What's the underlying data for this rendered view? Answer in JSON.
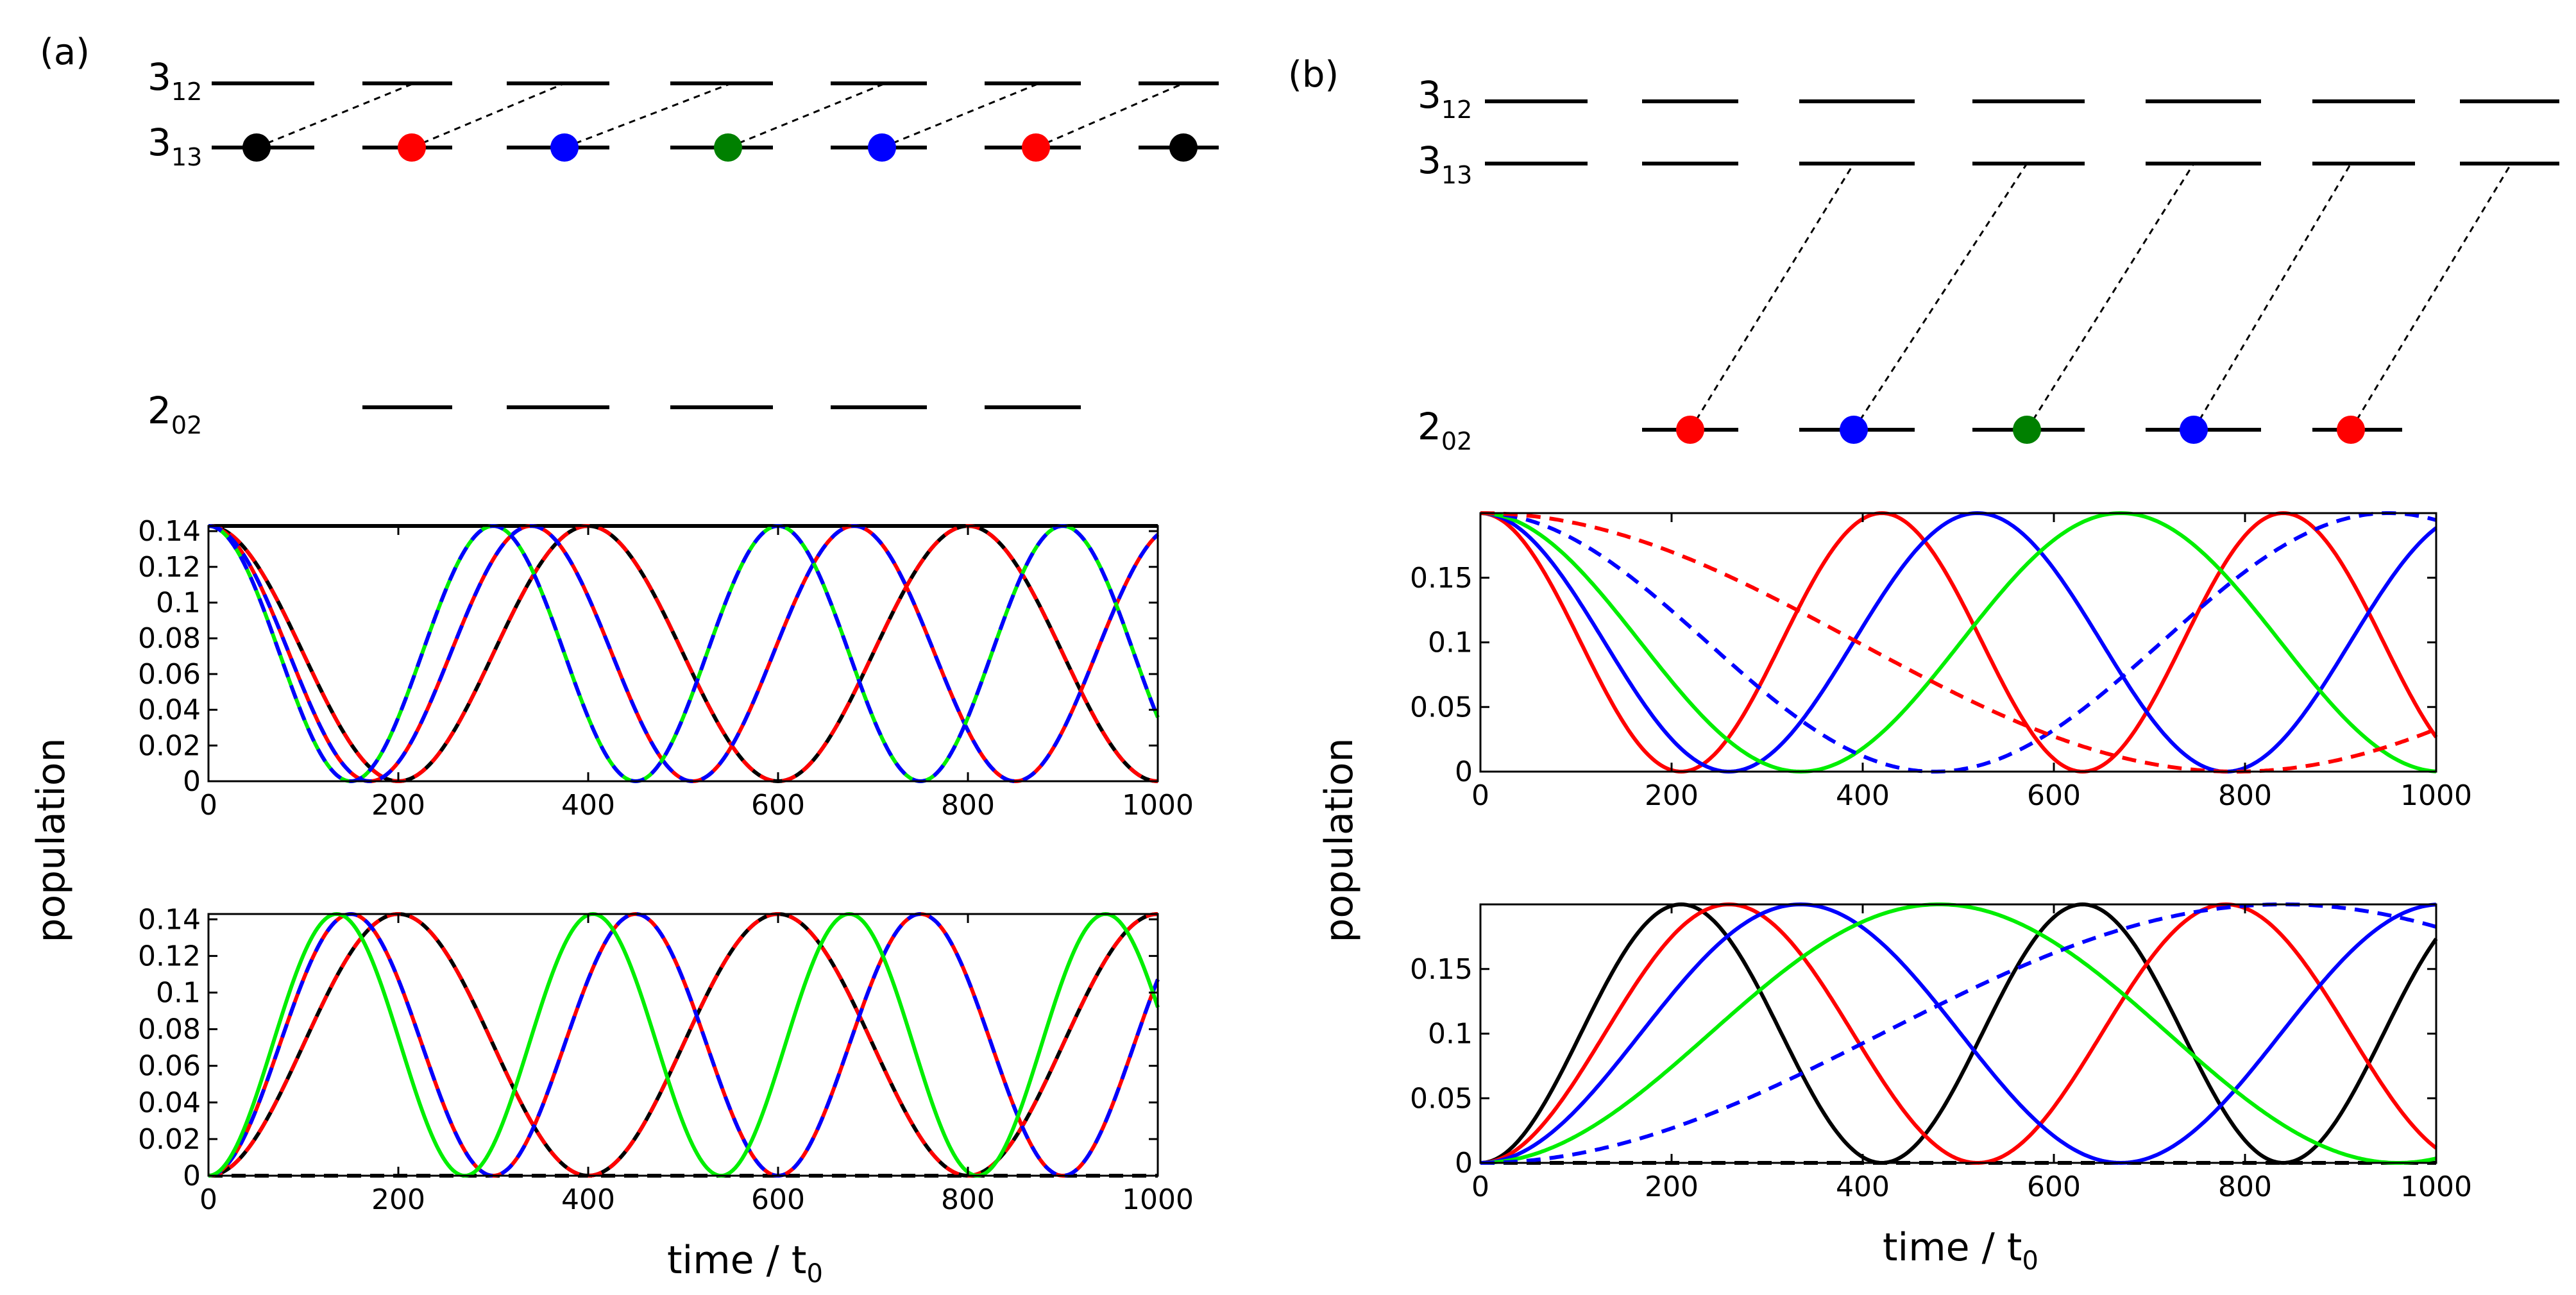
{
  "panel_a": {
    "label": "(a)",
    "levels": {
      "upper": "3",
      "upper_sub": "12",
      "mid": "3",
      "mid_sub": "13",
      "low": "2",
      "low_sub": "02"
    },
    "dot_colors": [
      "#000000",
      "#ff0000",
      "#0000ff",
      "#008000",
      "#0000ff",
      "#ff0000",
      "#000000"
    ]
  },
  "panel_b": {
    "label": "(b)",
    "levels": {
      "upper": "3",
      "upper_sub": "12",
      "mid": "3",
      "mid_sub": "13",
      "low": "2",
      "low_sub": "02"
    },
    "dot_colors": [
      "#ff0000",
      "#0000ff",
      "#008000",
      "#0000ff",
      "#ff0000"
    ]
  },
  "labels": {
    "ylabel": "population",
    "xlabel_a": "time / t",
    "xlabel_a_sub": "0",
    "xlabel_b": "time / t",
    "xlabel_b_sub": "0"
  },
  "chart_data": [
    {
      "id": "a_top",
      "type": "line",
      "xlabel": "time / t0",
      "ylabel": "population",
      "xlim": [
        0,
        1000
      ],
      "ylim": [
        0,
        0.1429
      ],
      "xticks": [
        0,
        200,
        400,
        600,
        800,
        1000
      ],
      "xticklabels": [
        "0",
        "200",
        "400",
        "600",
        "800",
        "1000"
      ],
      "yticks": [
        0,
        0.02,
        0.04,
        0.06,
        0.08,
        0.1,
        0.12,
        0.14
      ],
      "yticklabels": [
        "0",
        "0.02",
        "0.04",
        "0.06",
        "0.08",
        "0.1",
        "0.12",
        "0.14"
      ],
      "series": [
        {
          "name": "black const",
          "color": "#000000",
          "dash": false,
          "form": "const",
          "amp": 0.1429
        },
        {
          "name": "black",
          "color": "#000000",
          "dash": false,
          "form": "cos",
          "amp": 0.1429,
          "period": 400
        },
        {
          "name": "red dashed",
          "color": "#ff0000",
          "dash": true,
          "form": "cos",
          "amp": 0.1429,
          "period": 400
        },
        {
          "name": "red",
          "color": "#ff0000",
          "dash": false,
          "form": "cos",
          "amp": 0.1429,
          "period": 340
        },
        {
          "name": "blue dashed",
          "color": "#0000ff",
          "dash": true,
          "form": "cos",
          "amp": 0.1429,
          "period": 340
        },
        {
          "name": "green",
          "color": "#00ee00",
          "dash": false,
          "form": "cos",
          "amp": 0.1429,
          "period": 300
        },
        {
          "name": "blue dashed",
          "color": "#0000ff",
          "dash": true,
          "form": "cos",
          "amp": 0.1429,
          "period": 300
        }
      ]
    },
    {
      "id": "a_bottom",
      "type": "line",
      "xlabel": "time / t0",
      "ylabel": "population",
      "xlim": [
        0,
        1000
      ],
      "ylim": [
        0,
        0.1429
      ],
      "xticks": [
        0,
        200,
        400,
        600,
        800,
        1000
      ],
      "xticklabels": [
        "0",
        "200",
        "400",
        "600",
        "800",
        "1000"
      ],
      "yticks": [
        0,
        0.02,
        0.04,
        0.06,
        0.08,
        0.1,
        0.12,
        0.14
      ],
      "yticklabels": [
        "0",
        "0.02",
        "0.04",
        "0.06",
        "0.08",
        "0.1",
        "0.12",
        "0.14"
      ],
      "series": [
        {
          "name": "black dashed zero",
          "color": "#000000",
          "dash": true,
          "form": "const",
          "amp": 0.0
        },
        {
          "name": "black",
          "color": "#000000",
          "dash": false,
          "form": "sin",
          "amp": 0.1429,
          "period": 400
        },
        {
          "name": "red dashed",
          "color": "#ff0000",
          "dash": true,
          "form": "sin",
          "amp": 0.1429,
          "period": 400
        },
        {
          "name": "red",
          "color": "#ff0000",
          "dash": false,
          "form": "sin",
          "amp": 0.1429,
          "period": 300
        },
        {
          "name": "blue dashed",
          "color": "#0000ff",
          "dash": true,
          "form": "sin",
          "amp": 0.1429,
          "period": 300
        },
        {
          "name": "green",
          "color": "#00ee00",
          "dash": false,
          "form": "sin",
          "amp": 0.1429,
          "period": 270
        }
      ]
    },
    {
      "id": "b_top",
      "type": "line",
      "xlabel": "time / t0",
      "ylabel": "population",
      "xlim": [
        0,
        1000
      ],
      "ylim": [
        0,
        0.2
      ],
      "xticks": [
        0,
        200,
        400,
        600,
        800,
        1000
      ],
      "xticklabels": [
        "0",
        "200",
        "400",
        "600",
        "800",
        "1000"
      ],
      "yticks": [
        0,
        0.05,
        0.1,
        0.15
      ],
      "yticklabels": [
        "0",
        "0.05",
        "0.1",
        "0.15"
      ],
      "series": [
        {
          "name": "red",
          "color": "#ff0000",
          "dash": false,
          "form": "cos",
          "amp": 0.2,
          "period": 420
        },
        {
          "name": "blue",
          "color": "#0000ff",
          "dash": false,
          "form": "cos",
          "amp": 0.2,
          "period": 520
        },
        {
          "name": "green",
          "color": "#00ee00",
          "dash": false,
          "form": "cos",
          "amp": 0.2,
          "period": 670
        },
        {
          "name": "blue dashed",
          "color": "#0000ff",
          "dash": true,
          "form": "cos",
          "amp": 0.2,
          "period": 950
        },
        {
          "name": "red dashed",
          "color": "#ff0000",
          "dash": true,
          "form": "cos",
          "amp": 0.2,
          "period": 1580
        }
      ]
    },
    {
      "id": "b_bottom",
      "type": "line",
      "xlabel": "time / t0",
      "ylabel": "population",
      "xlim": [
        0,
        1000
      ],
      "ylim": [
        0,
        0.2
      ],
      "xticks": [
        0,
        200,
        400,
        600,
        800,
        1000
      ],
      "xticklabels": [
        "0",
        "200",
        "400",
        "600",
        "800",
        "1000"
      ],
      "yticks": [
        0,
        0.05,
        0.1,
        0.15
      ],
      "yticklabels": [
        "0",
        "0.05",
        "0.1",
        "0.15"
      ],
      "series": [
        {
          "name": "black dashed zero",
          "color": "#000000",
          "dash": true,
          "form": "const",
          "amp": 0.0
        },
        {
          "name": "black",
          "color": "#000000",
          "dash": false,
          "form": "sin",
          "amp": 0.2,
          "period": 420
        },
        {
          "name": "red",
          "color": "#ff0000",
          "dash": false,
          "form": "sin",
          "amp": 0.2,
          "period": 520
        },
        {
          "name": "blue",
          "color": "#0000ff",
          "dash": false,
          "form": "sin",
          "amp": 0.2,
          "period": 670
        },
        {
          "name": "green",
          "color": "#00ee00",
          "dash": false,
          "form": "sin",
          "amp": 0.2,
          "period": 960
        },
        {
          "name": "blue dashed",
          "color": "#0000ff",
          "dash": true,
          "form": "sin",
          "amp": 0.2,
          "period": 1680
        }
      ]
    }
  ]
}
